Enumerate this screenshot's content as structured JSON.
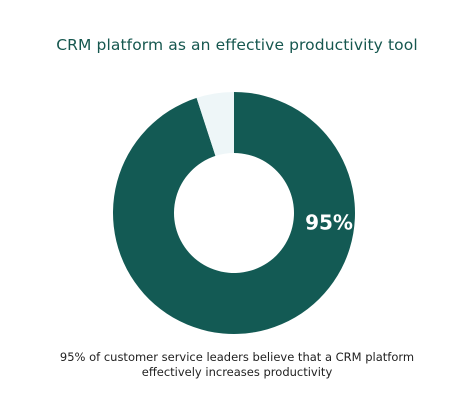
{
  "chart_data": {
    "type": "pie",
    "title": "CRM platform as an effective productivity tool",
    "series": [
      {
        "values": [
          95,
          5
        ],
        "colors": [
          "#135a54",
          "#eef6f8"
        ]
      }
    ],
    "data_labels": [
      "95%"
    ],
    "caption_lines": [
      "95% of customer service leaders believe that a CRM platform",
      "effectively increases productivity"
    ]
  }
}
